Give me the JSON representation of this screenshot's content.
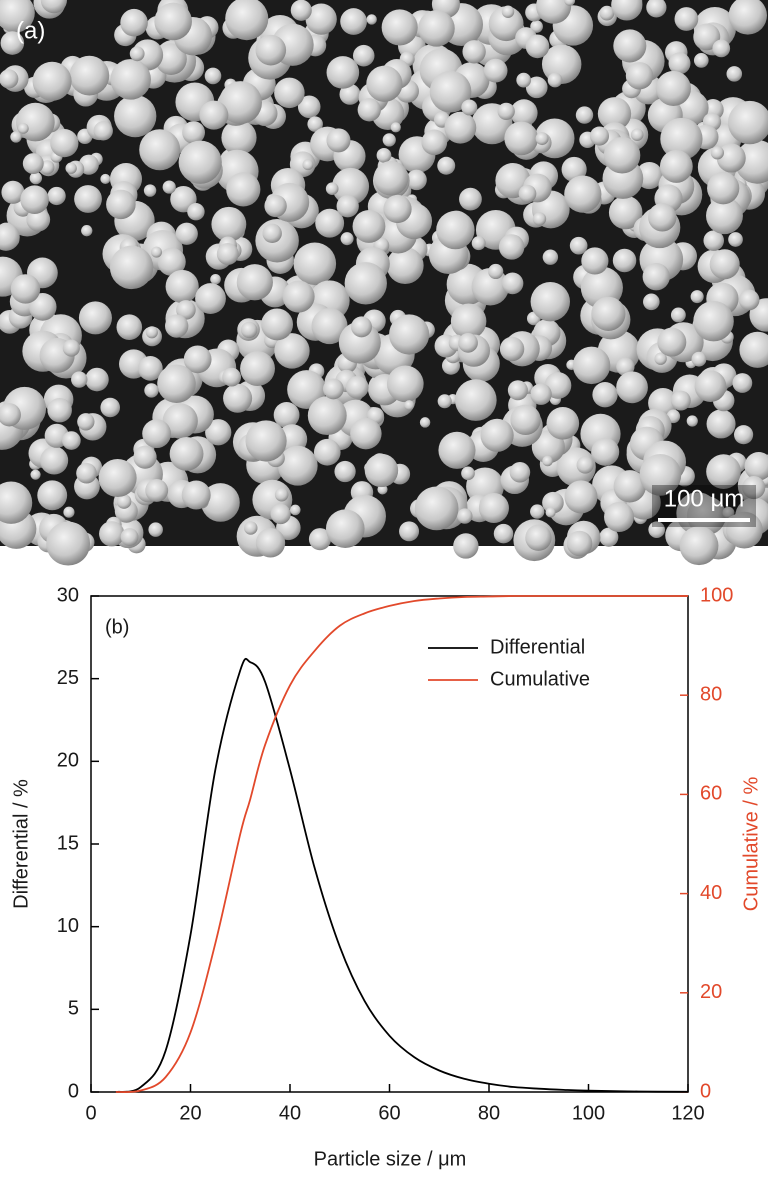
{
  "panel_a": {
    "label": "(a)",
    "scale_bar": "100 μm"
  },
  "chart_data": {
    "type": "line",
    "panel_label": "(b)",
    "x_label": "Particle size / μm",
    "y_label": "Differential / %",
    "y2_label": "Cumulative / %",
    "x": [
      5,
      10,
      15,
      20,
      25,
      30,
      32,
      35,
      40,
      45,
      50,
      55,
      60,
      65,
      70,
      75,
      80,
      85,
      90,
      95,
      100,
      110,
      120
    ],
    "series": [
      {
        "name": "Differential",
        "color": "#000000",
        "values": [
          0,
          0.3,
          2.5,
          9.5,
          19.5,
          25.5,
          26,
          24.8,
          19.5,
          13.5,
          8.8,
          5.5,
          3.4,
          2.1,
          1.3,
          0.8,
          0.5,
          0.3,
          0.2,
          0.13,
          0.08,
          0.03,
          0.01
        ]
      },
      {
        "name": "Cumulative",
        "color": "#e2492b",
        "axis": "y2",
        "values": [
          0,
          0.3,
          3,
          12,
          30,
          52,
          59,
          70,
          82,
          89,
          94,
          96.5,
          98,
          99,
          99.5,
          99.8,
          99.9,
          100,
          100,
          100,
          100,
          100,
          100
        ]
      }
    ],
    "xlim": [
      0,
      120
    ],
    "xticks": [
      0,
      20,
      40,
      60,
      80,
      100,
      120
    ],
    "ylim": [
      0,
      30
    ],
    "yticks": [
      0,
      5,
      10,
      15,
      20,
      25,
      30
    ],
    "y2lim": [
      0,
      100
    ],
    "y2ticks": [
      0,
      20,
      40,
      60,
      80,
      100
    ],
    "legend": "top-right",
    "grid": false
  }
}
